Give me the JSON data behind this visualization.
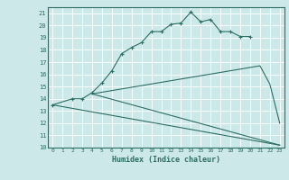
{
  "xlabel": "Humidex (Indice chaleur)",
  "bg_color": "#cce8e8",
  "line_color": "#2d6e63",
  "grid_color": "#b0d0d0",
  "xlim": [
    -0.5,
    23.5
  ],
  "ylim": [
    10,
    21.5
  ],
  "xticks": [
    0,
    1,
    2,
    3,
    4,
    5,
    6,
    7,
    8,
    9,
    10,
    11,
    12,
    13,
    14,
    15,
    16,
    17,
    18,
    19,
    20,
    21,
    22,
    23
  ],
  "yticks": [
    10,
    11,
    12,
    13,
    14,
    15,
    16,
    17,
    18,
    19,
    20,
    21
  ],
  "line1_x": [
    0,
    2,
    3,
    4,
    5,
    6,
    7,
    8,
    9,
    10,
    11,
    12,
    13,
    14,
    15,
    16,
    17,
    18,
    19,
    20
  ],
  "line1_y": [
    13.5,
    14.0,
    14.0,
    14.5,
    15.3,
    16.3,
    17.7,
    18.2,
    18.6,
    19.5,
    19.5,
    20.1,
    20.2,
    21.1,
    20.3,
    20.5,
    19.5,
    19.5,
    19.1,
    19.1
  ],
  "line2_x": [
    4,
    23
  ],
  "line2_y": [
    14.4,
    10.2
  ],
  "line3_x": [
    4,
    21,
    22,
    23
  ],
  "line3_y": [
    14.4,
    16.7,
    15.2,
    12.0
  ],
  "line4_x": [
    0,
    23
  ],
  "line4_y": [
    13.5,
    10.2
  ]
}
